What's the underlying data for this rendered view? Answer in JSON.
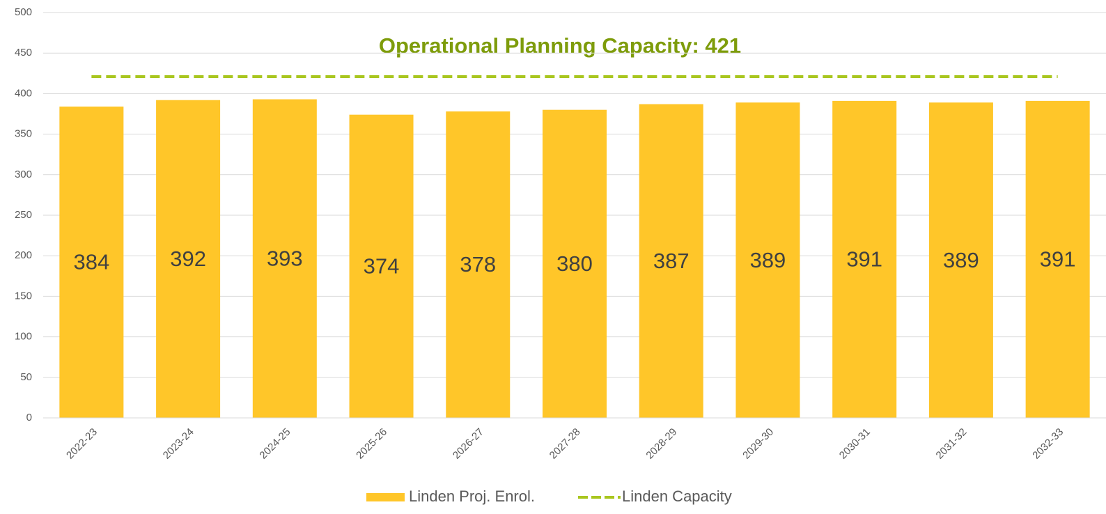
{
  "chart_data": {
    "type": "bar",
    "annotation": "Operational Planning Capacity: 421",
    "categories": [
      "2022-23",
      "2023-24",
      "2024-25",
      "2025-26",
      "2026-27",
      "2027-28",
      "2028-29",
      "2029-30",
      "2030-31",
      "2031-32",
      "2032-33"
    ],
    "series": [
      {
        "name": "Linden Proj. Enrol.",
        "type": "bar",
        "color": "#FFC629",
        "values": [
          384,
          392,
          393,
          374,
          378,
          380,
          387,
          389,
          391,
          389,
          391
        ]
      },
      {
        "name": "Linden Capacity",
        "type": "line",
        "dashed": true,
        "color": "#A9C61F",
        "values": [
          421,
          421,
          421,
          421,
          421,
          421,
          421,
          421,
          421,
          421,
          421
        ]
      }
    ],
    "ylim": [
      0,
      500
    ],
    "yticks": [
      0,
      50,
      100,
      150,
      200,
      250,
      300,
      350,
      400,
      450,
      500
    ],
    "grid": true,
    "legend": "bottom",
    "data_labels": true
  }
}
